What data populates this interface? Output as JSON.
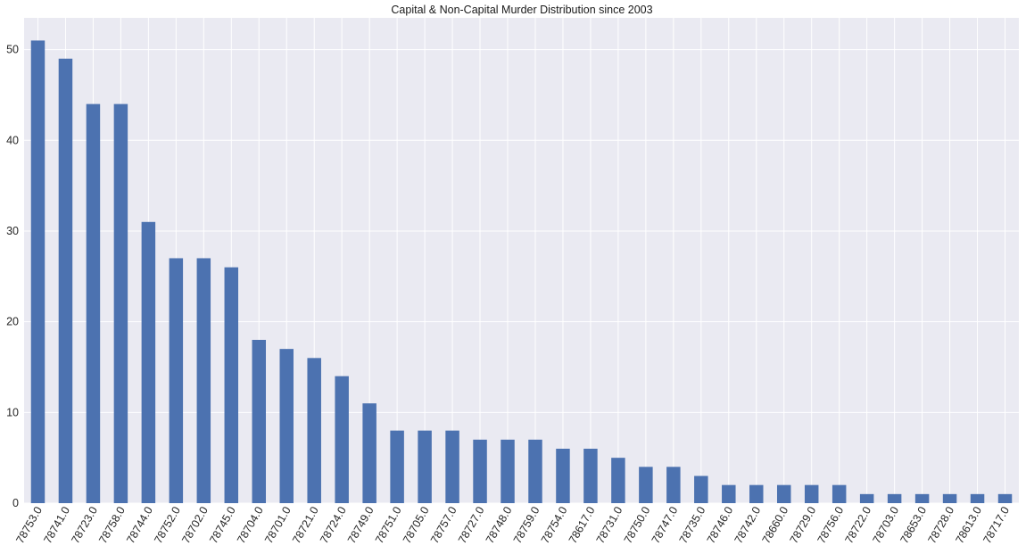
{
  "chart_data": {
    "type": "bar",
    "title": "Capital & Non-Capital Murder Distribution since 2003",
    "xlabel": "",
    "ylabel": "",
    "categories": [
      "78753.0",
      "78741.0",
      "78723.0",
      "78758.0",
      "78744.0",
      "78752.0",
      "78702.0",
      "78745.0",
      "78704.0",
      "78701.0",
      "78721.0",
      "78724.0",
      "78749.0",
      "78751.0",
      "78705.0",
      "78757.0",
      "78727.0",
      "78748.0",
      "78759.0",
      "78754.0",
      "78617.0",
      "78731.0",
      "78750.0",
      "78747.0",
      "78735.0",
      "78746.0",
      "78742.0",
      "78660.0",
      "78729.0",
      "78756.0",
      "78722.0",
      "78703.0",
      "78653.0",
      "78728.0",
      "78613.0",
      "78717.0"
    ],
    "values": [
      51,
      49,
      44,
      44,
      31,
      27,
      27,
      26,
      18,
      17,
      16,
      14,
      11,
      8,
      8,
      8,
      7,
      7,
      7,
      6,
      6,
      5,
      4,
      4,
      3,
      2,
      2,
      2,
      2,
      2,
      1,
      1,
      1,
      1,
      1,
      1
    ],
    "ylim": [
      0,
      53.5
    ],
    "yticks": [
      0,
      10,
      20,
      30,
      40,
      50
    ],
    "grid": true,
    "legend": "none",
    "colors": {
      "bar": "#4c72b0",
      "plot_bg": "#eaeaf2",
      "grid": "#ffffff"
    }
  }
}
